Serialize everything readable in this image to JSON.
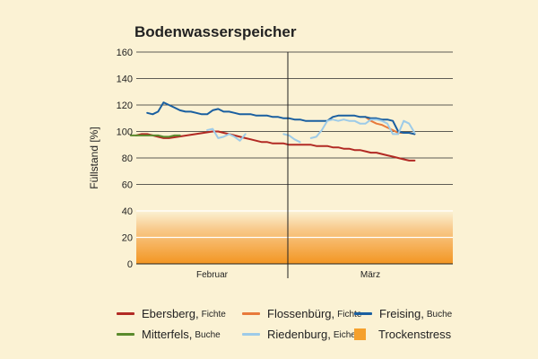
{
  "chart_data": {
    "type": "line",
    "title": "Bodenwasserspeicher",
    "ylabel": "Füllstand [%]",
    "xlabel": "",
    "ylim": [
      0,
      160
    ],
    "yticks": [
      0,
      20,
      40,
      60,
      80,
      100,
      120,
      140,
      160
    ],
    "categories": [
      "Februar",
      "März"
    ],
    "x_range_days": [
      1,
      59
    ],
    "grid": true,
    "legend_position": "bottom",
    "trockenstress_band": {
      "label": "Trockenstress",
      "range": [
        0,
        40
      ],
      "color": "#f5a02c"
    },
    "series": [
      {
        "name": "Ebersberg",
        "species": "Fichte",
        "color": "#b22a24",
        "points": [
          [
            1,
            97
          ],
          [
            2,
            98
          ],
          [
            3,
            98
          ],
          [
            4,
            97
          ],
          [
            5,
            96
          ],
          [
            6,
            95
          ],
          [
            7,
            95
          ],
          [
            15,
            100
          ],
          [
            16,
            100
          ],
          [
            17,
            99
          ],
          [
            18,
            98
          ],
          [
            19,
            97
          ],
          [
            20,
            96
          ],
          [
            21,
            95
          ],
          [
            22,
            94
          ],
          [
            23,
            93
          ],
          [
            24,
            92
          ],
          [
            25,
            92
          ],
          [
            26,
            91
          ],
          [
            27,
            91
          ],
          [
            28,
            91
          ],
          [
            29,
            90
          ],
          [
            30,
            90
          ],
          [
            31,
            90
          ],
          [
            32,
            90
          ],
          [
            33,
            90
          ],
          [
            34,
            89
          ],
          [
            35,
            89
          ],
          [
            36,
            89
          ],
          [
            37,
            88
          ],
          [
            38,
            88
          ],
          [
            39,
            87
          ],
          [
            40,
            87
          ],
          [
            41,
            86
          ],
          [
            42,
            86
          ],
          [
            43,
            85
          ],
          [
            44,
            84
          ],
          [
            45,
            84
          ],
          [
            46,
            83
          ],
          [
            47,
            82
          ],
          [
            48,
            81
          ],
          [
            49,
            80
          ],
          [
            50,
            79
          ],
          [
            51,
            78
          ],
          [
            52,
            78
          ]
        ]
      },
      {
        "name": "Flossenbürg",
        "species": "Fichte",
        "color": "#e87a3b",
        "points": [
          [
            43,
            111
          ],
          [
            44,
            108
          ],
          [
            45,
            106
          ],
          [
            46,
            105
          ],
          [
            47,
            103
          ],
          [
            48,
            101
          ],
          [
            49,
            99
          ],
          [
            50,
            99
          ],
          [
            51,
            99
          ],
          [
            52,
            98
          ]
        ]
      },
      {
        "name": "Freising",
        "species": "Buche",
        "color": "#1a5fa0",
        "points": [
          [
            3,
            114
          ],
          [
            4,
            113
          ],
          [
            5,
            115
          ],
          [
            6,
            122
          ],
          [
            7,
            120
          ],
          [
            8,
            118
          ],
          [
            9,
            116
          ],
          [
            10,
            115
          ],
          [
            11,
            115
          ],
          [
            12,
            114
          ],
          [
            13,
            113
          ],
          [
            14,
            113
          ],
          [
            15,
            116
          ],
          [
            16,
            117
          ],
          [
            17,
            115
          ],
          [
            18,
            115
          ],
          [
            19,
            114
          ],
          [
            20,
            113
          ],
          [
            21,
            113
          ],
          [
            22,
            113
          ],
          [
            23,
            112
          ],
          [
            24,
            112
          ],
          [
            25,
            112
          ],
          [
            26,
            111
          ],
          [
            27,
            111
          ],
          [
            28,
            110
          ],
          [
            29,
            110
          ],
          [
            30,
            109
          ],
          [
            31,
            109
          ],
          [
            32,
            108
          ],
          [
            33,
            108
          ],
          [
            34,
            108
          ],
          [
            35,
            108
          ],
          [
            36,
            108
          ],
          [
            37,
            111
          ],
          [
            38,
            112
          ],
          [
            39,
            112
          ],
          [
            40,
            112
          ],
          [
            41,
            112
          ],
          [
            42,
            111
          ],
          [
            43,
            111
          ],
          [
            44,
            110
          ],
          [
            45,
            110
          ],
          [
            46,
            109
          ],
          [
            47,
            109
          ],
          [
            48,
            108
          ],
          [
            49,
            100
          ],
          [
            50,
            99
          ],
          [
            51,
            99
          ],
          [
            52,
            98
          ]
        ]
      },
      {
        "name": "Mitterfels",
        "species": "Buche",
        "color": "#5a8a2c",
        "points": [
          [
            0,
            97
          ],
          [
            1,
            97
          ],
          [
            2,
            97
          ],
          [
            3,
            97
          ],
          [
            4,
            97
          ],
          [
            5,
            97
          ],
          [
            6,
            96
          ],
          [
            7,
            96
          ],
          [
            8,
            97
          ],
          [
            9,
            97
          ]
        ]
      },
      {
        "name": "Riedenburg",
        "species": "Eiche",
        "color": "#9dcbe8",
        "segments": [
          [
            [
              14,
              101
            ],
            [
              15,
              102
            ],
            [
              16,
              95
            ],
            [
              17,
              96
            ],
            [
              18,
              98
            ],
            [
              19,
              96
            ],
            [
              20,
              93
            ],
            [
              21,
              98
            ]
          ],
          [
            [
              28,
              98
            ],
            [
              29,
              97
            ],
            [
              30,
              94
            ],
            [
              31,
              92
            ]
          ],
          [
            [
              33,
              95
            ],
            [
              34,
              96
            ],
            [
              35,
              101
            ],
            [
              36,
              108
            ],
            [
              37,
              109
            ],
            [
              38,
              108
            ],
            [
              39,
              109
            ],
            [
              40,
              108
            ],
            [
              41,
              108
            ],
            [
              42,
              106
            ],
            [
              43,
              106
            ],
            [
              44,
              109
            ],
            [
              45,
              109
            ],
            [
              46,
              108
            ],
            [
              47,
              106
            ],
            [
              48,
              98
            ],
            [
              49,
              98
            ],
            [
              50,
              108
            ],
            [
              51,
              106
            ],
            [
              52,
              99
            ]
          ]
        ]
      }
    ]
  },
  "legend": {
    "items": [
      {
        "name": "Ebersberg,",
        "sub": "Fichte",
        "color": "#b22a24",
        "kind": "line"
      },
      {
        "name": "Flossenbürg,",
        "sub": "Fichte",
        "color": "#e87a3b",
        "kind": "line"
      },
      {
        "name": "Freising,",
        "sub": "Buche",
        "color": "#1a5fa0",
        "kind": "line"
      },
      {
        "name": "Mitterfels,",
        "sub": "Buche",
        "color": "#5a8a2c",
        "kind": "line"
      },
      {
        "name": "Riedenburg,",
        "sub": "Eiche",
        "color": "#9dcbe8",
        "kind": "line"
      },
      {
        "name": "Trockenstress",
        "sub": "",
        "color": "#f5a02c",
        "kind": "box"
      }
    ]
  }
}
